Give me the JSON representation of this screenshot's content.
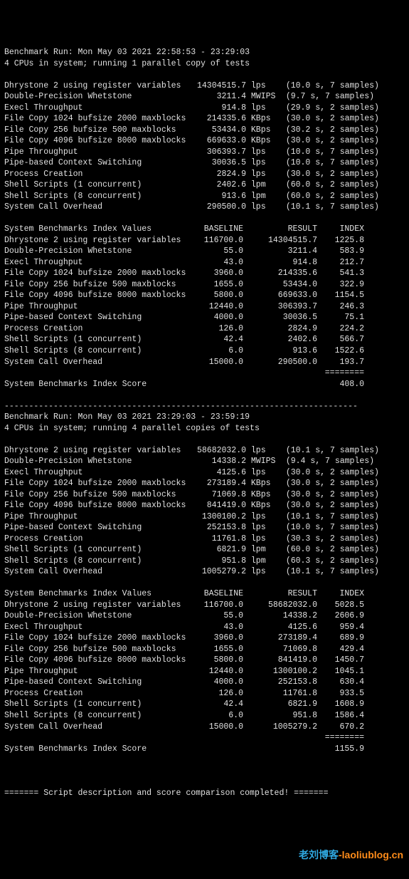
{
  "run1": {
    "header": "Benchmark Run: Mon May 03 2021 22:58:53 - 23:29:03",
    "cpu_line": "4 CPUs in system; running 1 parallel copy of tests",
    "tests": [
      {
        "name": "Dhrystone 2 using register variables",
        "val": "14304515.7",
        "unit": "lps",
        "note": "(10.0 s, 7 samples)"
      },
      {
        "name": "Double-Precision Whetstone",
        "val": "3211.4",
        "unit": "MWIPS",
        "note": "(9.7 s, 7 samples)"
      },
      {
        "name": "Execl Throughput",
        "val": "914.8",
        "unit": "lps",
        "note": "(29.9 s, 2 samples)"
      },
      {
        "name": "File Copy 1024 bufsize 2000 maxblocks",
        "val": "214335.6",
        "unit": "KBps",
        "note": "(30.0 s, 2 samples)"
      },
      {
        "name": "File Copy 256 bufsize 500 maxblocks",
        "val": "53434.0",
        "unit": "KBps",
        "note": "(30.2 s, 2 samples)"
      },
      {
        "name": "File Copy 4096 bufsize 8000 maxblocks",
        "val": "669633.0",
        "unit": "KBps",
        "note": "(30.0 s, 2 samples)"
      },
      {
        "name": "Pipe Throughput",
        "val": "306393.7",
        "unit": "lps",
        "note": "(10.0 s, 7 samples)"
      },
      {
        "name": "Pipe-based Context Switching",
        "val": "30036.5",
        "unit": "lps",
        "note": "(10.0 s, 7 samples)"
      },
      {
        "name": "Process Creation",
        "val": "2824.9",
        "unit": "lps",
        "note": "(30.0 s, 2 samples)"
      },
      {
        "name": "Shell Scripts (1 concurrent)",
        "val": "2402.6",
        "unit": "lpm",
        "note": "(60.0 s, 2 samples)"
      },
      {
        "name": "Shell Scripts (8 concurrent)",
        "val": "913.6",
        "unit": "lpm",
        "note": "(60.0 s, 2 samples)"
      },
      {
        "name": "System Call Overhead",
        "val": "290500.0",
        "unit": "lps",
        "note": "(10.1 s, 7 samples)"
      }
    ],
    "index_header": {
      "title": "System Benchmarks Index Values",
      "c1": "BASELINE",
      "c2": "RESULT",
      "c3": "INDEX"
    },
    "index": [
      {
        "name": "Dhrystone 2 using register variables",
        "b": "116700.0",
        "r": "14304515.7",
        "i": "1225.8"
      },
      {
        "name": "Double-Precision Whetstone",
        "b": "55.0",
        "r": "3211.4",
        "i": "583.9"
      },
      {
        "name": "Execl Throughput",
        "b": "43.0",
        "r": "914.8",
        "i": "212.7"
      },
      {
        "name": "File Copy 1024 bufsize 2000 maxblocks",
        "b": "3960.0",
        "r": "214335.6",
        "i": "541.3"
      },
      {
        "name": "File Copy 256 bufsize 500 maxblocks",
        "b": "1655.0",
        "r": "53434.0",
        "i": "322.9"
      },
      {
        "name": "File Copy 4096 bufsize 8000 maxblocks",
        "b": "5800.0",
        "r": "669633.0",
        "i": "1154.5"
      },
      {
        "name": "Pipe Throughput",
        "b": "12440.0",
        "r": "306393.7",
        "i": "246.3"
      },
      {
        "name": "Pipe-based Context Switching",
        "b": "4000.0",
        "r": "30036.5",
        "i": "75.1"
      },
      {
        "name": "Process Creation",
        "b": "126.0",
        "r": "2824.9",
        "i": "224.2"
      },
      {
        "name": "Shell Scripts (1 concurrent)",
        "b": "42.4",
        "r": "2402.6",
        "i": "566.7"
      },
      {
        "name": "Shell Scripts (8 concurrent)",
        "b": "6.0",
        "r": "913.6",
        "i": "1522.6"
      },
      {
        "name": "System Call Overhead",
        "b": "15000.0",
        "r": "290500.0",
        "i": "193.7"
      }
    ],
    "rule": "========",
    "score_label": "System Benchmarks Index Score",
    "score": "408.0"
  },
  "dash": "------------------------------------------------------------------------",
  "run2": {
    "header": "Benchmark Run: Mon May 03 2021 23:29:03 - 23:59:19",
    "cpu_line": "4 CPUs in system; running 4 parallel copies of tests",
    "tests": [
      {
        "name": "Dhrystone 2 using register variables",
        "val": "58682032.0",
        "unit": "lps",
        "note": "(10.1 s, 7 samples)"
      },
      {
        "name": "Double-Precision Whetstone",
        "val": "14338.2",
        "unit": "MWIPS",
        "note": "(9.4 s, 7 samples)"
      },
      {
        "name": "Execl Throughput",
        "val": "4125.6",
        "unit": "lps",
        "note": "(30.0 s, 2 samples)"
      },
      {
        "name": "File Copy 1024 bufsize 2000 maxblocks",
        "val": "273189.4",
        "unit": "KBps",
        "note": "(30.0 s, 2 samples)"
      },
      {
        "name": "File Copy 256 bufsize 500 maxblocks",
        "val": "71069.8",
        "unit": "KBps",
        "note": "(30.0 s, 2 samples)"
      },
      {
        "name": "File Copy 4096 bufsize 8000 maxblocks",
        "val": "841419.0",
        "unit": "KBps",
        "note": "(30.0 s, 2 samples)"
      },
      {
        "name": "Pipe Throughput",
        "val": "1300100.2",
        "unit": "lps",
        "note": "(10.1 s, 7 samples)"
      },
      {
        "name": "Pipe-based Context Switching",
        "val": "252153.8",
        "unit": "lps",
        "note": "(10.0 s, 7 samples)"
      },
      {
        "name": "Process Creation",
        "val": "11761.8",
        "unit": "lps",
        "note": "(30.3 s, 2 samples)"
      },
      {
        "name": "Shell Scripts (1 concurrent)",
        "val": "6821.9",
        "unit": "lpm",
        "note": "(60.0 s, 2 samples)"
      },
      {
        "name": "Shell Scripts (8 concurrent)",
        "val": "951.8",
        "unit": "lpm",
        "note": "(60.3 s, 2 samples)"
      },
      {
        "name": "System Call Overhead",
        "val": "1005279.2",
        "unit": "lps",
        "note": "(10.1 s, 7 samples)"
      }
    ],
    "index_header": {
      "title": "System Benchmarks Index Values",
      "c1": "BASELINE",
      "c2": "RESULT",
      "c3": "INDEX"
    },
    "index": [
      {
        "name": "Dhrystone 2 using register variables",
        "b": "116700.0",
        "r": "58682032.0",
        "i": "5028.5"
      },
      {
        "name": "Double-Precision Whetstone",
        "b": "55.0",
        "r": "14338.2",
        "i": "2606.9"
      },
      {
        "name": "Execl Throughput",
        "b": "43.0",
        "r": "4125.6",
        "i": "959.4"
      },
      {
        "name": "File Copy 1024 bufsize 2000 maxblocks",
        "b": "3960.0",
        "r": "273189.4",
        "i": "689.9"
      },
      {
        "name": "File Copy 256 bufsize 500 maxblocks",
        "b": "1655.0",
        "r": "71069.8",
        "i": "429.4"
      },
      {
        "name": "File Copy 4096 bufsize 8000 maxblocks",
        "b": "5800.0",
        "r": "841419.0",
        "i": "1450.7"
      },
      {
        "name": "Pipe Throughput",
        "b": "12440.0",
        "r": "1300100.2",
        "i": "1045.1"
      },
      {
        "name": "Pipe-based Context Switching",
        "b": "4000.0",
        "r": "252153.8",
        "i": "630.4"
      },
      {
        "name": "Process Creation",
        "b": "126.0",
        "r": "11761.8",
        "i": "933.5"
      },
      {
        "name": "Shell Scripts (1 concurrent)",
        "b": "42.4",
        "r": "6821.9",
        "i": "1608.9"
      },
      {
        "name": "Shell Scripts (8 concurrent)",
        "b": "6.0",
        "r": "951.8",
        "i": "1586.4"
      },
      {
        "name": "System Call Overhead",
        "b": "15000.0",
        "r": "1005279.2",
        "i": "670.2"
      }
    ],
    "rule": "========",
    "score_label": "System Benchmarks Index Score",
    "score": "1155.9"
  },
  "footer": "======= Script description and score comparison completed! =======",
  "watermark": {
    "a": "老刘博客",
    "b": "-laoliublog.cn"
  }
}
